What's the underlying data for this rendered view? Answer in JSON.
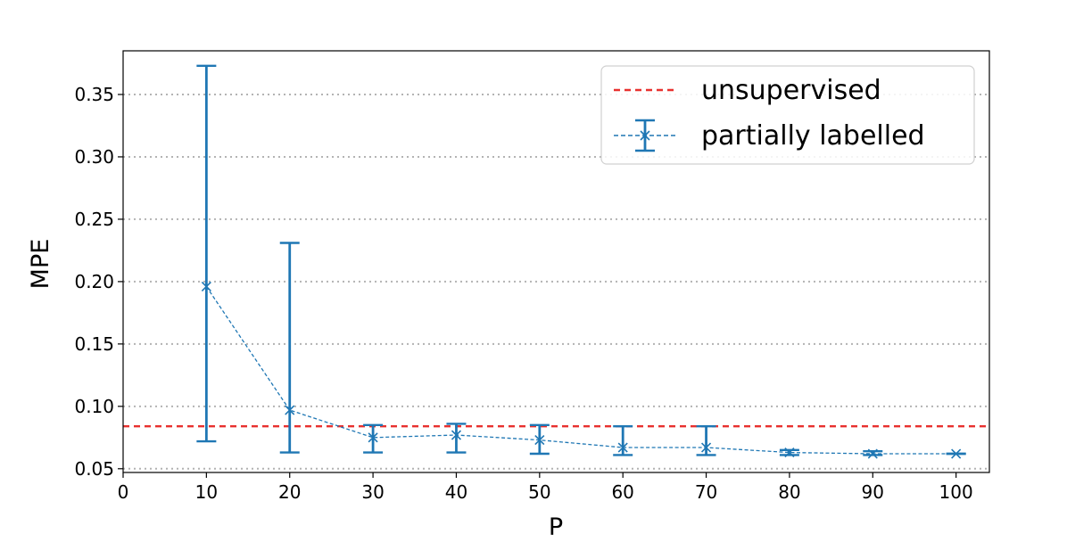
{
  "chart_data": {
    "type": "line",
    "xlabel": "P",
    "ylabel": "MPE",
    "xlim": [
      0,
      104
    ],
    "ylim": [
      0.047,
      0.385
    ],
    "xticks": [
      0,
      10,
      20,
      30,
      40,
      50,
      60,
      70,
      80,
      90,
      100
    ],
    "yticks": [
      0.05,
      0.1,
      0.15,
      0.2,
      0.25,
      0.3,
      0.35
    ],
    "ytick_labels": [
      "0.05",
      "0.10",
      "0.15",
      "0.20",
      "0.25",
      "0.30",
      "0.35"
    ],
    "grid": "horizontal dotted",
    "legend_position": "top-right",
    "series": [
      {
        "name": "unsupervised",
        "kind": "hline",
        "value": 0.084,
        "color": "#e8312f",
        "style": "dashed"
      },
      {
        "name": "partially labelled",
        "kind": "errorbar",
        "color": "#1f77b4",
        "style": "dashed",
        "marker": "x",
        "x": [
          10,
          20,
          30,
          40,
          50,
          60,
          70,
          80,
          90,
          100
        ],
        "y": [
          0.196,
          0.097,
          0.075,
          0.077,
          0.073,
          0.067,
          0.067,
          0.063,
          0.062,
          0.062
        ],
        "err_low": [
          0.072,
          0.063,
          0.063,
          0.063,
          0.062,
          0.061,
          0.061,
          0.061,
          0.061,
          0.062
        ],
        "err_high": [
          0.373,
          0.231,
          0.085,
          0.086,
          0.085,
          0.084,
          0.084,
          0.065,
          0.064,
          0.062
        ]
      }
    ]
  }
}
